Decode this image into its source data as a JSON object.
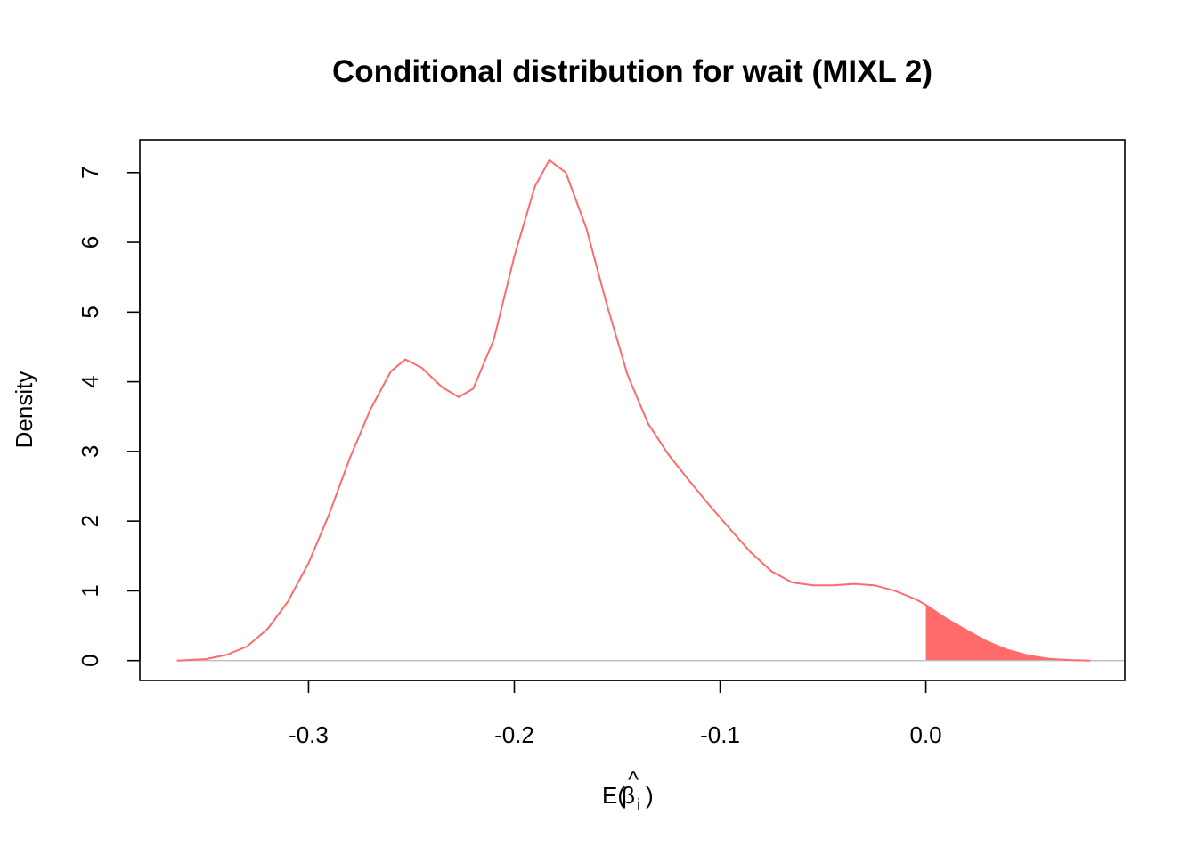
{
  "chart_data": {
    "type": "area",
    "title": "Conditional distribution for wait (MIXL 2)",
    "xlabel": "E(β̂i)",
    "xlabel_parts": {
      "prefix": "E(",
      "symbol": "β",
      "hat": "^",
      "subscript": "i",
      "suffix": ")"
    },
    "ylabel": "Density",
    "xlim": [
      -0.382,
      0.0967
    ],
    "ylim": [
      -0.285,
      7.47
    ],
    "x_ticks": [
      -0.3,
      -0.2,
      -0.1,
      0.0
    ],
    "x_tick_labels": [
      "-0.3",
      "-0.2",
      "-0.1",
      "0.0"
    ],
    "y_ticks": [
      0,
      1,
      2,
      3,
      4,
      5,
      6,
      7
    ],
    "y_tick_labels": [
      "0",
      "1",
      "2",
      "3",
      "4",
      "5",
      "6",
      "7"
    ],
    "baseline": 0,
    "shade_from_x": 0.0,
    "series": [
      {
        "color": "#ff6b6b",
        "points": [
          [
            -0.364,
            0.0
          ],
          [
            -0.35,
            0.02
          ],
          [
            -0.34,
            0.08
          ],
          [
            -0.33,
            0.2
          ],
          [
            -0.32,
            0.45
          ],
          [
            -0.31,
            0.85
          ],
          [
            -0.3,
            1.4
          ],
          [
            -0.29,
            2.1
          ],
          [
            -0.28,
            2.9
          ],
          [
            -0.27,
            3.6
          ],
          [
            -0.26,
            4.15
          ],
          [
            -0.253,
            4.32
          ],
          [
            -0.245,
            4.2
          ],
          [
            -0.235,
            3.92
          ],
          [
            -0.227,
            3.78
          ],
          [
            -0.22,
            3.9
          ],
          [
            -0.21,
            4.6
          ],
          [
            -0.2,
            5.8
          ],
          [
            -0.19,
            6.8
          ],
          [
            -0.183,
            7.18
          ],
          [
            -0.175,
            7.0
          ],
          [
            -0.165,
            6.2
          ],
          [
            -0.155,
            5.1
          ],
          [
            -0.145,
            4.1
          ],
          [
            -0.135,
            3.4
          ],
          [
            -0.125,
            2.95
          ],
          [
            -0.115,
            2.58
          ],
          [
            -0.105,
            2.22
          ],
          [
            -0.095,
            1.88
          ],
          [
            -0.085,
            1.55
          ],
          [
            -0.075,
            1.28
          ],
          [
            -0.065,
            1.12
          ],
          [
            -0.055,
            1.08
          ],
          [
            -0.045,
            1.08
          ],
          [
            -0.035,
            1.1
          ],
          [
            -0.025,
            1.08
          ],
          [
            -0.015,
            1.0
          ],
          [
            -0.005,
            0.88
          ],
          [
            0.0,
            0.8
          ],
          [
            0.005,
            0.7
          ],
          [
            0.01,
            0.6
          ],
          [
            0.02,
            0.43
          ],
          [
            0.03,
            0.27
          ],
          [
            0.04,
            0.15
          ],
          [
            0.05,
            0.07
          ],
          [
            0.06,
            0.025
          ],
          [
            0.07,
            0.008
          ],
          [
            0.08,
            0.0
          ]
        ]
      }
    ],
    "grid": false
  }
}
